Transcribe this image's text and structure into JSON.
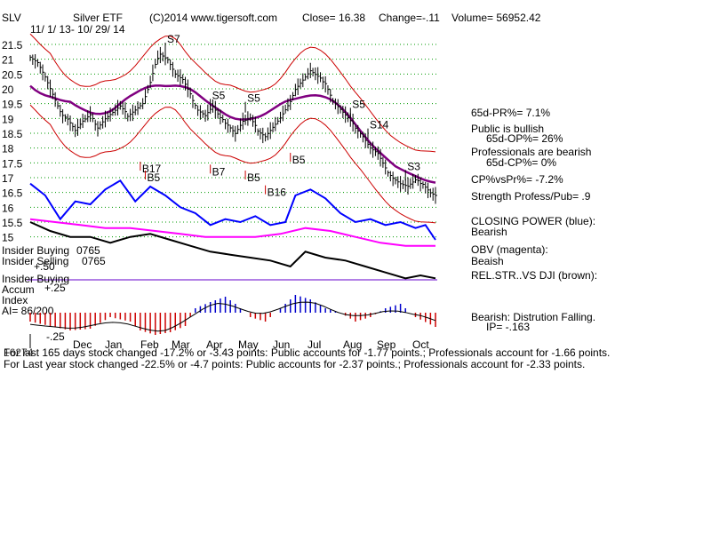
{
  "header": {
    "ticker": "SLV",
    "name": "Silver ETF",
    "copyright": "(C)2014 www.tigersoft.com",
    "close_label": "Close= 16.38",
    "change_label": "Change=-.11",
    "volume_label": "Volume= 56952.42",
    "date_range": "11/ 1/ 13- 10/ 29/ 14"
  },
  "chart_data": {
    "type": "line",
    "x": [
      "Dec",
      "Jan",
      "Feb",
      "Mar",
      "Apr",
      "May",
      "Jun",
      "Jul",
      "Aug",
      "Sep",
      "Oct"
    ],
    "y_ticks": [
      21.5,
      21,
      20.5,
      20,
      19.5,
      19,
      18.5,
      18,
      17.5,
      17,
      16.5,
      16,
      15.5,
      15
    ],
    "ylim": [
      14.9,
      21.8
    ],
    "grid": true,
    "price_series": [
      [
        0,
        21.1
      ],
      [
        3,
        20.9
      ],
      [
        6,
        20.4
      ],
      [
        9,
        19.8
      ],
      [
        12,
        19.2
      ],
      [
        15,
        19.0
      ],
      [
        18,
        18.6
      ],
      [
        21,
        18.9
      ],
      [
        24,
        19.1
      ],
      [
        27,
        18.7
      ],
      [
        30,
        19.0
      ],
      [
        33,
        19.2
      ],
      [
        36,
        19.4
      ],
      [
        39,
        19.1
      ],
      [
        42,
        19.3
      ],
      [
        45,
        19.5
      ],
      [
        48,
        20.2
      ],
      [
        50,
        20.8
      ],
      [
        52,
        21.2
      ],
      [
        55,
        21.0
      ],
      [
        58,
        20.5
      ],
      [
        61,
        20.3
      ],
      [
        64,
        19.8
      ],
      [
        67,
        19.3
      ],
      [
        70,
        19.1
      ],
      [
        73,
        19.4
      ],
      [
        76,
        19.0
      ],
      [
        79,
        18.8
      ],
      [
        82,
        18.5
      ],
      [
        85,
        18.9
      ],
      [
        88,
        19.0
      ],
      [
        91,
        18.6
      ],
      [
        94,
        18.4
      ],
      [
        97,
        18.7
      ],
      [
        100,
        19.0
      ],
      [
        103,
        19.4
      ],
      [
        106,
        20.0
      ],
      [
        109,
        20.3
      ],
      [
        112,
        20.6
      ],
      [
        115,
        20.4
      ],
      [
        118,
        20.2
      ],
      [
        121,
        19.6
      ],
      [
        124,
        19.3
      ],
      [
        127,
        19.0
      ],
      [
        130,
        18.7
      ],
      [
        133,
        18.4
      ],
      [
        136,
        18.0
      ],
      [
        139,
        17.8
      ],
      [
        142,
        17.3
      ],
      [
        145,
        17.0
      ],
      [
        148,
        16.8
      ],
      [
        151,
        16.7
      ],
      [
        154,
        16.9
      ],
      [
        157,
        16.8
      ],
      [
        160,
        16.5
      ],
      [
        162,
        16.4
      ]
    ],
    "closing_power": [
      [
        0,
        16.8
      ],
      [
        6,
        16.4
      ],
      [
        12,
        15.6
      ],
      [
        18,
        16.2
      ],
      [
        24,
        16.1
      ],
      [
        30,
        16.6
      ],
      [
        36,
        16.9
      ],
      [
        42,
        16.2
      ],
      [
        48,
        16.7
      ],
      [
        54,
        16.4
      ],
      [
        60,
        16.0
      ],
      [
        66,
        15.8
      ],
      [
        72,
        15.4
      ],
      [
        78,
        15.6
      ],
      [
        84,
        15.5
      ],
      [
        90,
        15.7
      ],
      [
        96,
        15.4
      ],
      [
        102,
        15.5
      ],
      [
        106,
        16.4
      ],
      [
        112,
        16.6
      ],
      [
        118,
        16.3
      ],
      [
        124,
        15.8
      ],
      [
        130,
        15.5
      ],
      [
        136,
        15.6
      ],
      [
        142,
        15.4
      ],
      [
        148,
        15.5
      ],
      [
        154,
        15.3
      ],
      [
        158,
        15.4
      ],
      [
        162,
        14.9
      ]
    ],
    "obv": [
      [
        0,
        15.6
      ],
      [
        10,
        15.5
      ],
      [
        20,
        15.4
      ],
      [
        30,
        15.3
      ],
      [
        40,
        15.3
      ],
      [
        50,
        15.2
      ],
      [
        60,
        15.1
      ],
      [
        70,
        15.0
      ],
      [
        80,
        15.0
      ],
      [
        90,
        15.0
      ],
      [
        100,
        15.1
      ],
      [
        110,
        15.3
      ],
      [
        120,
        15.2
      ],
      [
        130,
        15.0
      ],
      [
        140,
        14.8
      ],
      [
        150,
        14.7
      ],
      [
        162,
        14.7
      ]
    ],
    "rel_str_vs_dji": [
      [
        0,
        15.5
      ],
      [
        8,
        15.2
      ],
      [
        16,
        15.0
      ],
      [
        24,
        15.0
      ],
      [
        32,
        14.8
      ],
      [
        40,
        15.0
      ],
      [
        48,
        15.1
      ],
      [
        56,
        14.9
      ],
      [
        64,
        14.7
      ],
      [
        72,
        14.5
      ],
      [
        80,
        14.4
      ],
      [
        88,
        14.3
      ],
      [
        96,
        14.2
      ],
      [
        104,
        14.0
      ],
      [
        110,
        14.5
      ],
      [
        118,
        14.3
      ],
      [
        126,
        14.2
      ],
      [
        134,
        14.0
      ],
      [
        142,
        13.8
      ],
      [
        150,
        13.6
      ],
      [
        156,
        13.7
      ],
      [
        162,
        13.6
      ]
    ],
    "accum_index": [
      [
        0,
        -0.1
      ],
      [
        8,
        -0.15
      ],
      [
        16,
        -0.2
      ],
      [
        24,
        -0.18
      ],
      [
        32,
        -0.05
      ],
      [
        40,
        -0.1
      ],
      [
        44,
        -0.2
      ],
      [
        50,
        -0.25
      ],
      [
        56,
        -0.22
      ],
      [
        62,
        -0.15
      ],
      [
        66,
        0.05
      ],
      [
        72,
        0.12
      ],
      [
        78,
        0.18
      ],
      [
        82,
        0.1
      ],
      [
        88,
        -0.05
      ],
      [
        94,
        -0.1
      ],
      [
        100,
        0.05
      ],
      [
        106,
        0.2
      ],
      [
        112,
        0.15
      ],
      [
        118,
        0.05
      ],
      [
        124,
        0.0
      ],
      [
        130,
        -0.1
      ],
      [
        136,
        -0.05
      ],
      [
        142,
        0.05
      ],
      [
        148,
        0.1
      ],
      [
        154,
        -0.05
      ],
      [
        162,
        -0.16
      ]
    ]
  },
  "signals": [
    {
      "label": "S7",
      "xi": 54,
      "y": 21.5
    },
    {
      "label": "S5",
      "xi": 72,
      "y": 19.6
    },
    {
      "label": "S5",
      "xi": 86,
      "y": 19.5
    },
    {
      "label": "S5",
      "xi": 128,
      "y": 19.3
    },
    {
      "label": "S14",
      "xi": 135,
      "y": 18.6
    },
    {
      "label": "S3",
      "xi": 150,
      "y": 17.2
    },
    {
      "label": "B17",
      "xi": 44,
      "y": 17.6
    },
    {
      "label": "B5",
      "xi": 46,
      "y": 17.3
    },
    {
      "label": "B7",
      "xi": 72,
      "y": 17.5
    },
    {
      "label": "B5",
      "xi": 86,
      "y": 17.3
    },
    {
      "label": "B16",
      "xi": 94,
      "y": 16.8
    },
    {
      "label": "B5",
      "xi": 104,
      "y": 17.9
    }
  ],
  "insider": {
    "buying_label": "Insider Buying",
    "buying_value": "0765",
    "selling_label": "Insider Selling",
    "selling_value": "0765",
    "level": "+.50"
  },
  "accum": {
    "insider_buying_label": "Insider Buying",
    "accum_label": "Accum",
    "level_up": "+.25",
    "index_label": "Index",
    "ai_label": "AI= 86/200",
    "level_down": "-.25"
  },
  "side_panel": {
    "pr": "65d-PR%= 7.1%",
    "public": "Public is bullish",
    "op": "65d-OP%= 26%",
    "professionals": "Professionals are bearish",
    "cp": "65d-CP%= 0%",
    "cpvspr": "CP%vsPr%= -7.2%",
    "strength": "Strength Profess/Pub= .9",
    "closing_power_title": "CLOSING POWER (blue):",
    "closing_power_state": "Bearish",
    "obv_title": "OBV (magenta):",
    "obv_state": "Beaish",
    "rel_str": "REL.STR..VS DJI (brown):",
    "distribution": "Bearish: Distrution Falling.",
    "ip": "IP= -.163"
  },
  "footer": {
    "line1_prefix": "16274",
    "line1": "For last 165 days stock changed -17.2% or -3.43 points:  Public accounts for -1.77 points.;  Professionals account for -1.66 points.",
    "line2": "For Last year stock changed -22.5% or -4.7 points:  Public accounts for -2.37 points.;  Professionals account for -2.33 points."
  },
  "colors": {
    "price_bars": "#000000",
    "bands": "#cc0000",
    "moving_avg": "#800080",
    "closing_power": "#0000ff",
    "obv": "#ff00ff",
    "rel_str": "#000000",
    "grid": "#009900",
    "accum_pos": "#0000cc",
    "accum_neg": "#cc0000",
    "insider_line": "#6600cc"
  }
}
